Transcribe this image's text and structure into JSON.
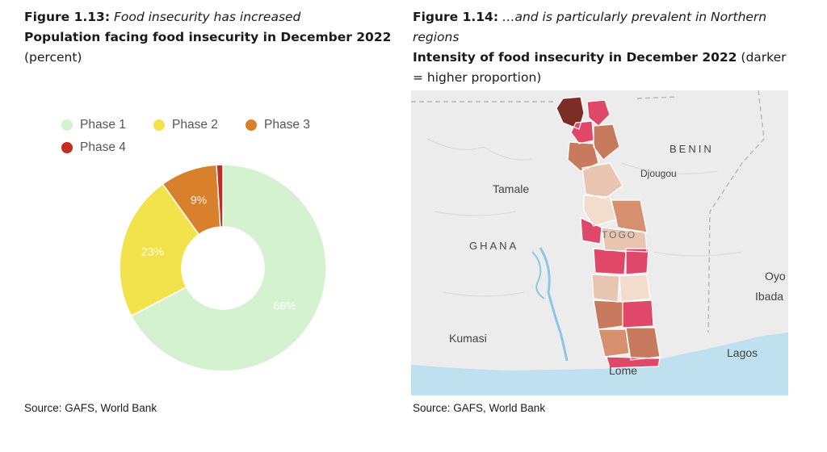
{
  "left": {
    "fig_label": "Figure 1.13:",
    "fig_caption": "Food insecurity has increased",
    "title": "Population facing food insecurity in December 2022",
    "subtitle": "(percent)",
    "source": "Source: GAFS, World Bank"
  },
  "right": {
    "fig_label": "Figure 1.14:",
    "fig_caption": "…and is particularly prevalent in Northern regions",
    "title": "Intensity of food insecurity in December 2022",
    "subtitle": "(darker = higher proportion)",
    "source": "Source: GAFS, World Bank",
    "map_labels": {
      "benin": "BENIN",
      "djougou": "Djougou",
      "tamale": "Tamale",
      "ghana": "GHANA",
      "togo": "TOGO",
      "oyo": "Oyo",
      "ibadan": "Ibada",
      "kumasi": "Kumasi",
      "lagos": "Lagos",
      "lome": "Lome"
    },
    "region_colors": [
      "#7b2d26",
      "#e0486a",
      "#c87a5e",
      "#e8c5b1",
      "#f2dccc",
      "#d6906e"
    ]
  },
  "chart_data": {
    "type": "pie",
    "categories": [
      "Phase 1",
      "Phase 2",
      "Phase 3",
      "Phase 4"
    ],
    "values": [
      68,
      23,
      9,
      1
    ],
    "data_labels": [
      "68%",
      "23%",
      "9%",
      ""
    ],
    "colors": [
      "#d4f2d0",
      "#f2e24b",
      "#d9802d",
      "#c62c23"
    ],
    "donut": true,
    "legend_position": "top"
  }
}
